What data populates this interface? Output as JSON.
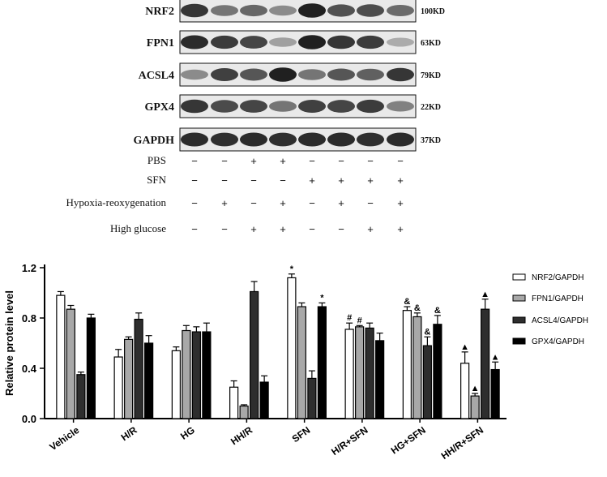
{
  "western_blot": {
    "bands": [
      {
        "name": "NRF2",
        "size": "100KD",
        "intensities": [
          0.85,
          0.55,
          0.62,
          0.45,
          0.95,
          0.72,
          0.74,
          0.6
        ]
      },
      {
        "name": "FPN1",
        "size": "63KD",
        "intensities": [
          0.9,
          0.82,
          0.78,
          0.35,
          0.95,
          0.85,
          0.82,
          0.3
        ]
      },
      {
        "name": "ACSL4",
        "size": "79KD",
        "intensities": [
          0.45,
          0.8,
          0.7,
          0.95,
          0.55,
          0.7,
          0.65,
          0.85
        ]
      },
      {
        "name": "GPX4",
        "size": "22KD",
        "intensities": [
          0.85,
          0.75,
          0.78,
          0.55,
          0.8,
          0.78,
          0.82,
          0.5
        ]
      },
      {
        "name": "GAPDH",
        "size": "37KD",
        "intensities": [
          0.9,
          0.88,
          0.9,
          0.88,
          0.9,
          0.9,
          0.88,
          0.9
        ]
      }
    ],
    "conditions": [
      {
        "label": "PBS",
        "signs": [
          "−",
          "−",
          "+",
          "+",
          "−",
          "−",
          "−",
          "−"
        ]
      },
      {
        "label": "SFN",
        "signs": [
          "−",
          "−",
          "−",
          "−",
          "+",
          "+",
          "+",
          "+"
        ]
      },
      {
        "label": "Hypoxia-reoxygenation",
        "signs": [
          "−",
          "+",
          "−",
          "+",
          "−",
          "+",
          "−",
          "+"
        ]
      },
      {
        "label": "High glucose",
        "signs": [
          "−",
          "−",
          "+",
          "+",
          "−",
          "−",
          "+",
          "+"
        ]
      }
    ]
  },
  "chart_data": {
    "type": "bar",
    "categories": [
      "Vehicle",
      "H/R",
      "HG",
      "HH/R",
      "SFN",
      "H/R+SFN",
      "HG+SFN",
      "HH/R+SFN"
    ],
    "ylabel": "Relative protein level",
    "xlabel": "",
    "ylim": [
      0,
      1.2
    ],
    "yticks": [
      0.0,
      0.4,
      0.8,
      1.2
    ],
    "ytick_labels": [
      "0.0",
      "0.4",
      "0.8",
      "1.2"
    ],
    "legend_position": "right",
    "series": [
      {
        "name": "NRF2/GAPDH",
        "color": "#ffffff",
        "values": [
          0.98,
          0.49,
          0.54,
          0.25,
          1.12,
          0.71,
          0.86,
          0.44
        ],
        "errors": [
          0.03,
          0.06,
          0.03,
          0.05,
          0.03,
          0.05,
          0.03,
          0.09
        ],
        "markers": [
          "",
          "",
          "",
          "",
          "*",
          "#",
          "&",
          "▲"
        ]
      },
      {
        "name": "FPN1/GAPDH",
        "color": "#a8a8a8",
        "values": [
          0.87,
          0.63,
          0.7,
          0.1,
          0.89,
          0.73,
          0.81,
          0.18
        ],
        "errors": [
          0.03,
          0.02,
          0.04,
          0.01,
          0.03,
          0.01,
          0.03,
          0.02
        ],
        "markers": [
          "",
          "",
          "",
          "",
          "",
          "#",
          "&",
          "▲"
        ]
      },
      {
        "name": "ACSL4/GAPDH",
        "color": "#2e2e2e",
        "values": [
          0.35,
          0.79,
          0.69,
          1.01,
          0.32,
          0.72,
          0.58,
          0.87
        ],
        "errors": [
          0.02,
          0.05,
          0.04,
          0.08,
          0.06,
          0.04,
          0.07,
          0.08
        ],
        "markers": [
          "",
          "",
          "",
          "",
          "",
          "",
          "&",
          "▲"
        ]
      },
      {
        "name": "GPX4/GAPDH",
        "color": "#000000",
        "values": [
          0.8,
          0.6,
          0.69,
          0.29,
          0.89,
          0.62,
          0.75,
          0.39
        ],
        "errors": [
          0.03,
          0.06,
          0.07,
          0.05,
          0.03,
          0.06,
          0.07,
          0.06
        ],
        "markers": [
          "",
          "",
          "",
          "",
          "*",
          "",
          "&",
          "▲"
        ]
      }
    ]
  }
}
